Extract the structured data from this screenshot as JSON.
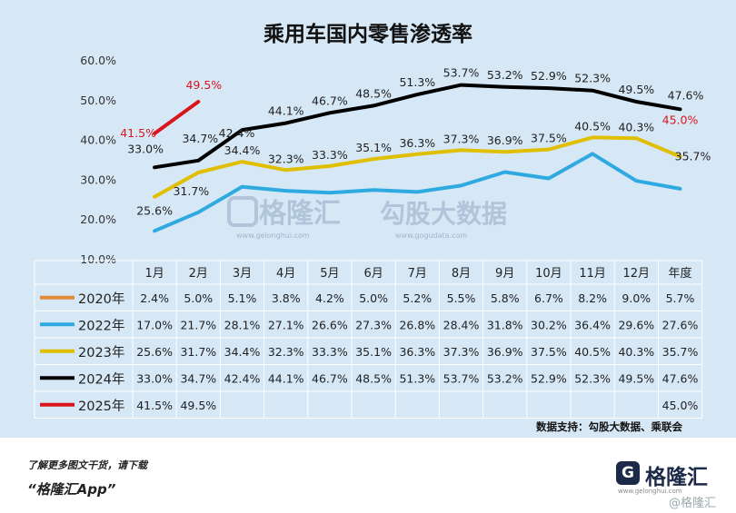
{
  "title": "乘用车国内零售渗透率",
  "source": "数据支持：勾股大数据、乘联会",
  "watermark": {
    "left_brand": "格隆汇",
    "left_url": "www.gelonghui.com",
    "right_brand": "勾股大数据",
    "right_url": "www.gogudata.com"
  },
  "footer": {
    "line1": "了解更多图文干货，请下载",
    "line2": "“格隆汇App”",
    "logo_mark": "G",
    "logo_text": "格隆汇",
    "logo_url": "www.gelonghui.com",
    "corner_mark": "@格隆汇"
  },
  "colors": {
    "2020年": "#e08a3c",
    "2022年": "#2eaae1",
    "2023年": "#e0bf00",
    "2024年": "#000000",
    "2025年": "#d9161c",
    "background": "#d6e7f6"
  },
  "chart_data": {
    "type": "line",
    "title": "乘用车国内零售渗透率",
    "categories": [
      "1月",
      "2月",
      "3月",
      "4月",
      "5月",
      "6月",
      "7月",
      "8月",
      "9月",
      "10月",
      "11月",
      "12月",
      "年度"
    ],
    "y_ticks": [
      "60.0%",
      "50.0%",
      "40.0%",
      "30.0%",
      "20.0%",
      "10.0%"
    ],
    "ylim": [
      10,
      60
    ],
    "grid": false,
    "legend": "table-below",
    "series": [
      {
        "name": "2020年",
        "values": [
          2.4,
          5.0,
          5.1,
          3.8,
          4.2,
          5.0,
          5.2,
          5.5,
          5.8,
          6.7,
          8.2,
          9.0,
          5.7
        ],
        "labels": [
          "2.4%",
          "5.0%",
          "5.1%",
          "3.8%",
          "4.2%",
          "5.0%",
          "5.2%",
          "5.5%",
          "5.8%",
          "6.7%",
          "8.2%",
          "9.0%",
          "5.7%"
        ]
      },
      {
        "name": "2022年",
        "values": [
          17.0,
          21.7,
          28.1,
          27.1,
          26.6,
          27.3,
          26.8,
          28.4,
          31.8,
          30.2,
          36.4,
          29.6,
          27.6
        ],
        "labels": [
          "17.0%",
          "21.7%",
          "28.1%",
          "27.1%",
          "26.6%",
          "27.3%",
          "26.8%",
          "28.4%",
          "31.8%",
          "30.2%",
          "36.4%",
          "29.6%",
          "27.6%"
        ]
      },
      {
        "name": "2023年",
        "values": [
          25.6,
          31.7,
          34.4,
          32.3,
          33.3,
          35.1,
          36.3,
          37.3,
          36.9,
          37.5,
          40.5,
          40.3,
          35.7
        ],
        "labels": [
          "25.6%",
          "31.7%",
          "34.4%",
          "32.3%",
          "33.3%",
          "35.1%",
          "36.3%",
          "37.3%",
          "36.9%",
          "37.5%",
          "40.5%",
          "40.3%",
          "35.7%"
        ]
      },
      {
        "name": "2024年",
        "values": [
          33.0,
          34.7,
          42.4,
          44.1,
          46.7,
          48.5,
          51.3,
          53.7,
          53.2,
          52.9,
          52.3,
          49.5,
          47.6
        ],
        "labels": [
          "33.0%",
          "34.7%",
          "42.4%",
          "44.1%",
          "46.7%",
          "48.5%",
          "51.3%",
          "53.7%",
          "53.2%",
          "52.9%",
          "52.3%",
          "49.5%",
          "47.6%"
        ]
      },
      {
        "name": "2025年",
        "values": [
          41.5,
          49.5,
          null,
          null,
          null,
          null,
          null,
          null,
          null,
          null,
          null,
          null,
          45.0
        ],
        "labels": [
          "41.5%",
          "49.5%",
          "",
          "",
          "",
          "",
          "",
          "",
          "",
          "",
          "",
          "",
          "45.0%"
        ]
      }
    ],
    "plotted_series": [
      "2022年",
      "2023年",
      "2024年",
      "2025年"
    ],
    "point_labels": [
      {
        "series": "2024年",
        "index": 0,
        "text": "33.0%"
      },
      {
        "series": "2024年",
        "index": 1,
        "text": "34.7%"
      },
      {
        "series": "2024年",
        "index": 2,
        "text": "42.4%"
      },
      {
        "series": "2024年",
        "index": 3,
        "text": "44.1%"
      },
      {
        "series": "2024年",
        "index": 4,
        "text": "46.7%"
      },
      {
        "series": "2024年",
        "index": 5,
        "text": "48.5%"
      },
      {
        "series": "2024年",
        "index": 6,
        "text": "51.3%"
      },
      {
        "series": "2024年",
        "index": 7,
        "text": "53.7%"
      },
      {
        "series": "2024年",
        "index": 8,
        "text": "53.2%"
      },
      {
        "series": "2024年",
        "index": 9,
        "text": "52.9%"
      },
      {
        "series": "2024年",
        "index": 10,
        "text": "52.3%"
      },
      {
        "series": "2024年",
        "index": 11,
        "text": "49.5%"
      },
      {
        "series": "2024年",
        "index": 12,
        "text": "47.6%"
      },
      {
        "series": "2023年",
        "index": 0,
        "text": "25.6%"
      },
      {
        "series": "2023年",
        "index": 1,
        "text": "31.7%"
      },
      {
        "series": "2023年",
        "index": 2,
        "text": "34.4%"
      },
      {
        "series": "2023年",
        "index": 3,
        "text": "32.3%"
      },
      {
        "series": "2023年",
        "index": 4,
        "text": "33.3%"
      },
      {
        "series": "2023年",
        "index": 5,
        "text": "35.1%"
      },
      {
        "series": "2023年",
        "index": 6,
        "text": "36.3%"
      },
      {
        "series": "2023年",
        "index": 7,
        "text": "37.3%"
      },
      {
        "series": "2023年",
        "index": 8,
        "text": "36.9%"
      },
      {
        "series": "2023年",
        "index": 9,
        "text": "37.5%"
      },
      {
        "series": "2023年",
        "index": 10,
        "text": "40.5%"
      },
      {
        "series": "2023年",
        "index": 11,
        "text": "40.3%"
      },
      {
        "series": "2023年",
        "index": 12,
        "text": "35.7%"
      },
      {
        "series": "2025年",
        "index": 0,
        "text": "41.5%"
      },
      {
        "series": "2025年",
        "index": 1,
        "text": "49.5%"
      },
      {
        "series": "2025年",
        "index": 12,
        "text": "45.0%"
      }
    ]
  }
}
